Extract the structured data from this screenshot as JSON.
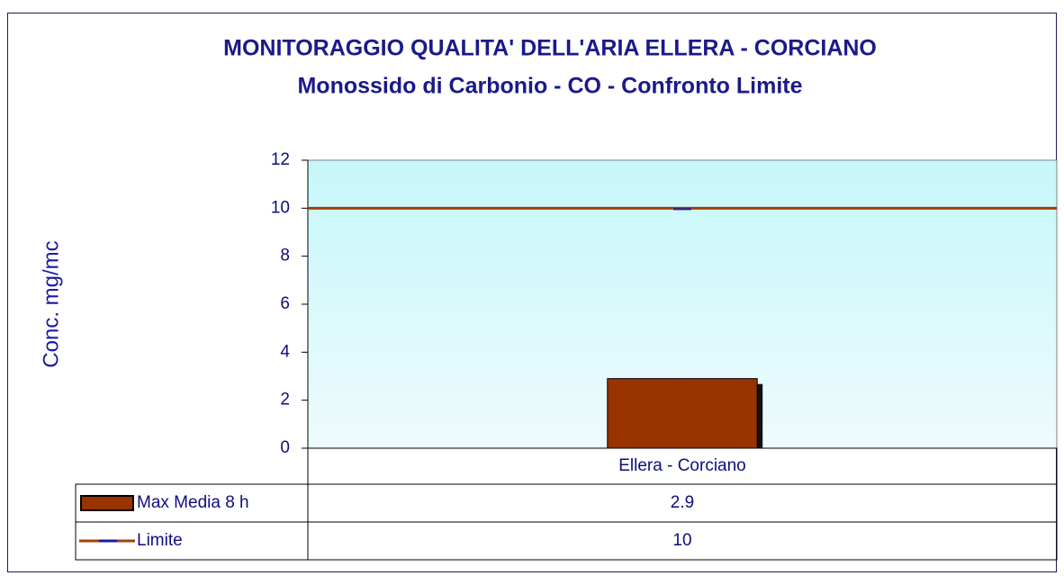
{
  "chart_data": {
    "type": "bar",
    "title": "MONITORAGGIO QUALITA' DELL'ARIA ELLERA - CORCIANO",
    "subtitle": "Monossido di Carbonio - CO - Confronto Limite",
    "y_label": "Conc. mg/mc",
    "categories": [
      "Ellera - Corciano"
    ],
    "series": [
      {
        "name": "Max Media 8 h",
        "type": "bar",
        "color": "#993300",
        "values": [
          2.9
        ]
      },
      {
        "name": "Limite",
        "type": "line",
        "color": "#a0400a",
        "marker_color": "#1a1aa0",
        "values": [
          10
        ]
      }
    ],
    "ylim": [
      0,
      12
    ],
    "yticks": [
      0,
      2,
      4,
      6,
      8,
      10,
      12
    ],
    "data_table": true
  }
}
